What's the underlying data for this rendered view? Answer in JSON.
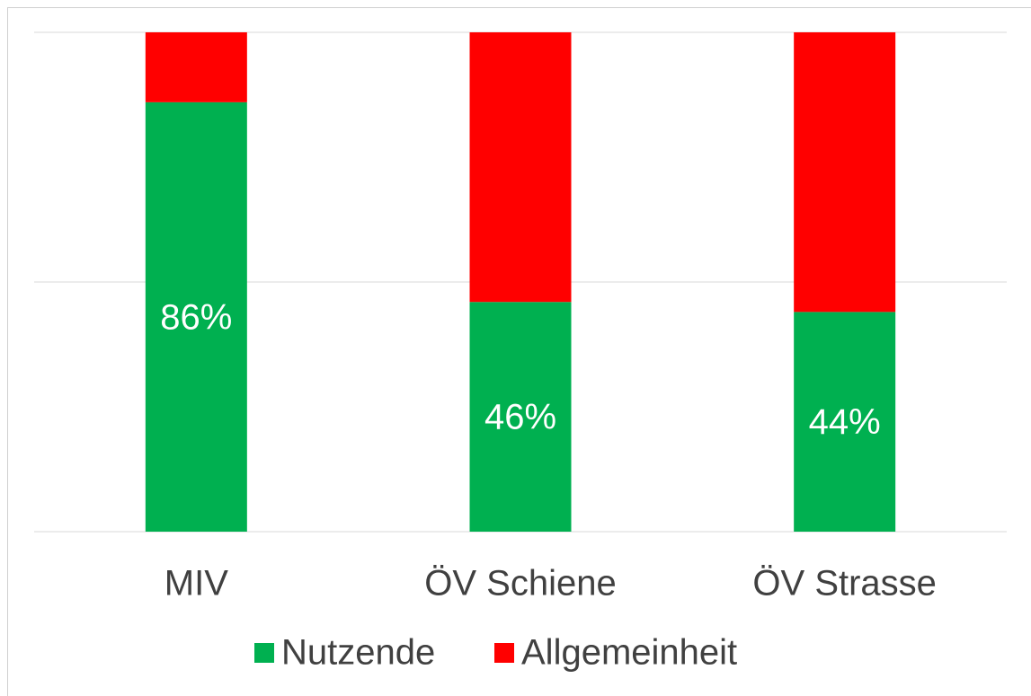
{
  "chart_data": {
    "type": "stacked_bar",
    "categories": [
      "MIV",
      "ÖV Schiene",
      "ÖV Strasse"
    ],
    "series": [
      {
        "name": "Nutzende",
        "color": "#00b050",
        "values": [
          86,
          46,
          44
        ],
        "value_labels": [
          "86%",
          "46%",
          "44%"
        ]
      },
      {
        "name": "Allgemeinheit",
        "color": "#ff0000",
        "values": [
          14,
          54,
          56
        ]
      }
    ],
    "ylim": [
      0,
      100
    ],
    "yticks": [
      0,
      50,
      100
    ],
    "grid": true,
    "legend": "bottom"
  }
}
